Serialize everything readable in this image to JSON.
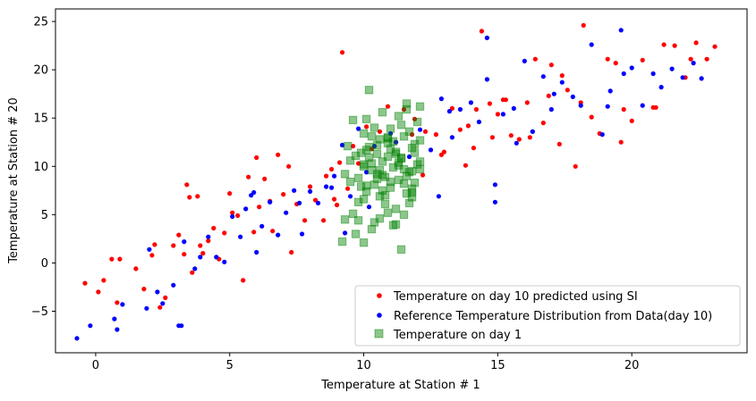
{
  "chart_data": {
    "type": "scatter",
    "title": "",
    "xlabel": "Temperature at Station # 1",
    "ylabel": "Temperature at Station # 20",
    "xlim": [
      -1.5,
      24.3
    ],
    "ylim": [
      -9.3,
      26.3
    ],
    "xticks": [
      0,
      5,
      10,
      15,
      20
    ],
    "yticks": [
      -5,
      0,
      5,
      10,
      15,
      20,
      25
    ],
    "xtick_labels": [
      "0",
      "5",
      "10",
      "15",
      "20"
    ],
    "ytick_labels": [
      "−5",
      "0",
      "5",
      "10",
      "15",
      "20",
      "25"
    ],
    "legend_position": "lower-right",
    "series": [
      {
        "name": "Temperature on day 10 predicted using SI",
        "marker": "circle",
        "color": "#ff0000",
        "x": [
          -0.4,
          0.1,
          0.3,
          0.6,
          0.9,
          0.8,
          1.5,
          1.8,
          2.1,
          2.4,
          2.6,
          2.9,
          3.1,
          3.3,
          3.5,
          3.6,
          3.8,
          3.9,
          4.2,
          4.4,
          4.6,
          4.8,
          5.1,
          5.3,
          5.5,
          5.7,
          5.9,
          6.1,
          6.3,
          6.5,
          6.8,
          7.0,
          7.3,
          7.5,
          7.8,
          8.0,
          8.2,
          8.5,
          8.8,
          9.0,
          9.2,
          9.4,
          9.6,
          9.8,
          10.3,
          10.6,
          10.9,
          11.2,
          11.5,
          11.9,
          12.3,
          12.7,
          13.0,
          13.3,
          13.6,
          13.9,
          14.2,
          14.4,
          14.7,
          15.0,
          15.2,
          15.5,
          15.8,
          16.1,
          16.4,
          16.7,
          17.0,
          17.3,
          17.6,
          17.9,
          18.2,
          18.5,
          18.8,
          19.1,
          19.4,
          19.7,
          20.0,
          20.4,
          20.8,
          21.2,
          21.6,
          22.0,
          22.4,
          22.8,
          23.1,
          9.1,
          7.2,
          6.0,
          8.6,
          3.4,
          5.0,
          11.8,
          12.9,
          14.1,
          15.3,
          16.9,
          18.1,
          19.6,
          20.9,
          22.2,
          4.0,
          2.2,
          6.6,
          8.9,
          10.1,
          13.8,
          16.2,
          17.4,
          12.2,
          14.8
        ],
        "y": [
          -2.1,
          -3.0,
          -1.8,
          0.4,
          0.4,
          -4.1,
          -0.6,
          -2.7,
          0.8,
          -4.6,
          -3.6,
          1.8,
          2.9,
          0.9,
          6.8,
          -1.0,
          6.9,
          1.8,
          2.3,
          3.6,
          0.4,
          3.1,
          5.2,
          4.9,
          -1.8,
          8.9,
          3.2,
          5.8,
          8.7,
          6.4,
          11.2,
          7.1,
          1.1,
          6.1,
          4.4,
          7.9,
          6.5,
          4.4,
          9.7,
          6.0,
          21.8,
          7.7,
          12.1,
          10.3,
          11.8,
          13.6,
          16.2,
          12.5,
          15.9,
          14.9,
          13.6,
          13.3,
          11.5,
          16.0,
          13.8,
          14.2,
          15.9,
          24.0,
          16.5,
          15.4,
          16.9,
          13.2,
          12.8,
          16.6,
          21.1,
          14.5,
          20.5,
          12.3,
          17.9,
          10.0,
          24.6,
          15.1,
          13.4,
          21.1,
          20.7,
          15.9,
          14.7,
          21.0,
          16.1,
          22.6,
          22.5,
          19.2,
          22.8,
          21.1,
          22.4,
          10.4,
          10.0,
          10.9,
          9.0,
          8.1,
          7.2,
          13.3,
          11.2,
          11.9,
          16.9,
          17.3,
          16.6,
          12.5,
          16.1,
          21.1,
          1.0,
          1.9,
          3.3,
          6.6,
          14.1,
          10.1,
          13.0,
          19.4,
          9.1,
          13.0
        ]
      },
      {
        "name": "Reference Temperature Distribution from Data(day 10)",
        "marker": "circle",
        "color": "#0000ff",
        "x": [
          -0.7,
          -0.2,
          0.7,
          0.8,
          1.0,
          1.9,
          2.3,
          2.5,
          2.9,
          3.1,
          3.3,
          3.7,
          3.9,
          4.2,
          4.5,
          4.8,
          5.1,
          5.4,
          5.6,
          5.9,
          6.2,
          6.5,
          6.8,
          7.1,
          7.4,
          7.7,
          8.0,
          8.3,
          8.6,
          8.9,
          9.2,
          9.5,
          9.8,
          10.1,
          10.4,
          11.2,
          11.7,
          12.1,
          12.5,
          12.9,
          13.2,
          13.6,
          14.0,
          14.3,
          14.6,
          14.9,
          15.2,
          15.6,
          16.0,
          16.3,
          16.7,
          17.1,
          17.4,
          17.8,
          18.1,
          18.5,
          18.9,
          19.2,
          19.6,
          20.0,
          20.4,
          20.8,
          21.1,
          21.5,
          21.9,
          22.3,
          22.6,
          3.2,
          6.0,
          7.6,
          9.3,
          12.8,
          14.9,
          17.0,
          19.7,
          16.3,
          19.1,
          13.3,
          5.8,
          8.8,
          14.6,
          15.7,
          11.0,
          10.2,
          2.0
        ],
        "y": [
          -7.8,
          -6.5,
          -5.8,
          -6.9,
          -4.3,
          -4.7,
          -3.0,
          -4.2,
          -2.3,
          -6.5,
          2.2,
          -0.6,
          0.6,
          2.7,
          0.6,
          0.1,
          4.8,
          2.7,
          5.6,
          7.3,
          3.8,
          6.3,
          2.9,
          5.2,
          7.5,
          3.0,
          7.4,
          6.2,
          7.9,
          9.0,
          12.2,
          6.9,
          13.9,
          9.4,
          12.1,
          12.5,
          11.0,
          13.8,
          11.7,
          17.0,
          15.7,
          15.9,
          16.6,
          14.6,
          23.3,
          6.3,
          15.4,
          16.0,
          20.9,
          13.6,
          19.3,
          17.5,
          18.7,
          17.2,
          16.3,
          22.6,
          13.3,
          17.8,
          24.1,
          20.2,
          16.3,
          19.6,
          18.2,
          20.1,
          19.2,
          20.7,
          19.1,
          -6.5,
          1.1,
          6.2,
          3.1,
          6.9,
          8.1,
          15.9,
          19.6,
          13.6,
          16.2,
          13.0,
          7.0,
          7.8,
          19.0,
          12.4,
          13.4,
          5.8,
          1.4
        ]
      },
      {
        "name": "Temperature on day 1",
        "marker": "square",
        "color": "#008000",
        "alpha": 0.45,
        "x": [
          9.3,
          9.5,
          9.7,
          9.8,
          10.0,
          10.1,
          10.2,
          10.3,
          10.4,
          10.5,
          10.6,
          10.7,
          10.8,
          10.9,
          11.0,
          11.1,
          11.2,
          11.3,
          11.4,
          11.5,
          11.6,
          11.7,
          11.8,
          11.9,
          12.0,
          12.1,
          9.4,
          9.6,
          9.9,
          10.0,
          10.2,
          10.4,
          10.6,
          10.8,
          11.0,
          11.2,
          11.4,
          11.6,
          11.8,
          12.0,
          9.5,
          9.8,
          10.1,
          10.3,
          10.5,
          10.7,
          10.9,
          11.1,
          11.3,
          11.5,
          11.7,
          11.9,
          12.1,
          10.1,
          10.4,
          10.7,
          11.0,
          11.3,
          11.6,
          11.9,
          9.3,
          9.7,
          10.0,
          10.3,
          10.6,
          10.9,
          11.2,
          11.5,
          11.8,
          12.1,
          10.0,
          10.2,
          10.5,
          10.8,
          11.1,
          11.4,
          11.7,
          10.1,
          10.6,
          11.0,
          11.4,
          11.8,
          9.6,
          10.3,
          10.9,
          11.5,
          12.1,
          9.2,
          9.8,
          10.9,
          11.6,
          10.0,
          10.5,
          11.2,
          11.8,
          9.9,
          10.7,
          11.3
        ],
        "y": [
          9.2,
          8.4,
          11.1,
          6.3,
          10.2,
          7.4,
          12.0,
          9.6,
          8.1,
          11.3,
          6.9,
          10.5,
          8.9,
          12.4,
          7.8,
          9.9,
          11.5,
          8.6,
          10.8,
          13.1,
          7.2,
          9.4,
          11.9,
          8.3,
          10.2,
          12.7,
          12.1,
          5.1,
          7.9,
          13.4,
          10.9,
          4.2,
          12.8,
          6.1,
          13.9,
          5.6,
          14.3,
          9.0,
          6.8,
          14.6,
          10.6,
          8.8,
          11.7,
          13.1,
          9.2,
          7.5,
          11.0,
          12.6,
          10.1,
          8.2,
          13.6,
          11.4,
          9.7,
          14.9,
          14.0,
          15.6,
          11.8,
          15.2,
          16.5,
          12.3,
          4.5,
          3.0,
          6.6,
          3.5,
          4.6,
          5.2,
          4.0,
          5.0,
          7.3,
          16.2,
          2.1,
          17.9,
          12.2,
          7.0,
          3.9,
          1.4,
          6.2,
          8.0,
          9.6,
          8.4,
          10.9,
          9.5,
          14.8,
          10.3,
          12.9,
          9.7,
          10.5,
          2.2,
          4.4,
          13.0,
          15.9,
          10.0,
          8.7,
          11.3,
          7.7,
          11.4,
          9.1,
          10.4
        ]
      }
    ]
  }
}
